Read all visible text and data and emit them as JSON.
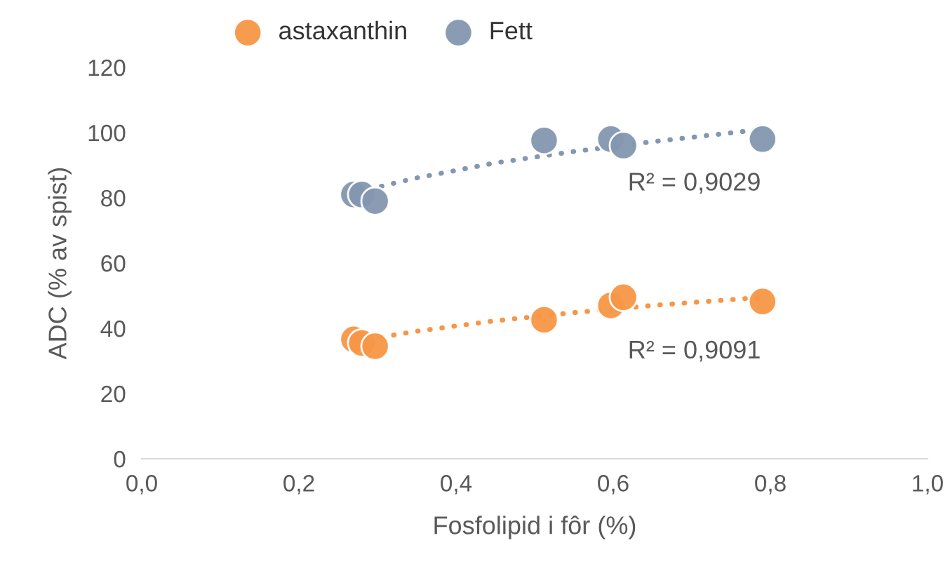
{
  "chart_data": {
    "type": "scatter",
    "xlabel": "Fosfolipid i fôr (%)",
    "ylabel": "ADC (% av spist)",
    "xlim": [
      0,
      1
    ],
    "xticks": [
      {
        "value": 0,
        "label": "0,0"
      },
      {
        "value": 0.2,
        "label": "0,2"
      },
      {
        "value": 0.4,
        "label": "0,4"
      },
      {
        "value": 0.6,
        "label": "0,6"
      },
      {
        "value": 0.8,
        "label": "0,8"
      },
      {
        "value": 1,
        "label": "1,0"
      }
    ],
    "ylim": [
      0,
      120
    ],
    "yticks": [
      0,
      20,
      40,
      60,
      80,
      100,
      120
    ],
    "grid": false,
    "legend": "top",
    "series": [
      {
        "name": "astaxanthin",
        "marker": "circle",
        "color": "#f79646",
        "x": [
          0.27,
          0.28,
          0.297,
          0.512,
          0.597,
          0.613,
          0.79
        ],
        "values": [
          36.6,
          35.5,
          34.5,
          42.6,
          47,
          49.5,
          48.2
        ]
      },
      {
        "name": "Fett",
        "marker": "circle",
        "color": "#8497b0",
        "x": [
          0.27,
          0.28,
          0.297,
          0.512,
          0.597,
          0.613,
          0.79
        ],
        "values": [
          81,
          81,
          79,
          97.6,
          98,
          96,
          98
        ]
      },
      {
        "type": "line",
        "marker": "none",
        "line_style": "dotted",
        "color": "#8497b0",
        "x": [
          0.29,
          0.35,
          0.45,
          0.55,
          0.65,
          0.79
        ],
        "values": [
          82.7,
          86.1,
          90.7,
          94.2,
          97.2,
          101.0
        ]
      },
      {
        "type": "line",
        "marker": "none",
        "line_style": "dotted",
        "color": "#f79646",
        "x": [
          0.29,
          0.35,
          0.45,
          0.55,
          0.65,
          0.79
        ],
        "values": [
          36.7,
          39.1,
          42.3,
          44.8,
          47.0,
          49.5
        ]
      }
    ],
    "annotations": [
      "R² = 0,9029",
      "R² = 0,9091"
    ]
  }
}
